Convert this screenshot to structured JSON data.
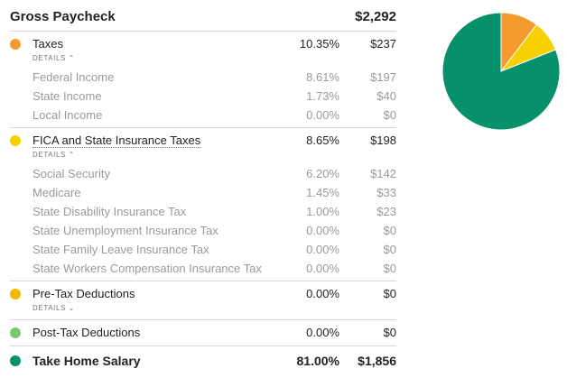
{
  "header": {
    "title": "Gross Paycheck",
    "amount": "$2,292"
  },
  "sections": {
    "taxes": {
      "label": "Taxes",
      "percent": "10.35%",
      "amount": "$237",
      "color": "#f59a2e",
      "details_label": "DETAILS ⌃",
      "items": [
        {
          "label": "Federal Income",
          "percent": "8.61%",
          "amount": "$197"
        },
        {
          "label": "State Income",
          "percent": "1.73%",
          "amount": "$40"
        },
        {
          "label": "Local Income",
          "percent": "0.00%",
          "amount": "$0"
        }
      ]
    },
    "fica": {
      "label": "FICA and State Insurance Taxes",
      "percent": "8.65%",
      "amount": "$198",
      "color": "#f7d000",
      "details_label": "DETAILS ⌃",
      "items": [
        {
          "label": "Social Security",
          "percent": "6.20%",
          "amount": "$142"
        },
        {
          "label": "Medicare",
          "percent": "1.45%",
          "amount": "$33"
        },
        {
          "label": "State Disability Insurance Tax",
          "percent": "1.00%",
          "amount": "$23"
        },
        {
          "label": "State Unemployment Insurance Tax",
          "percent": "0.00%",
          "amount": "$0"
        },
        {
          "label": "State Family Leave Insurance Tax",
          "percent": "0.00%",
          "amount": "$0"
        },
        {
          "label": "State Workers Compensation Insurance Tax",
          "percent": "0.00%",
          "amount": "$0"
        }
      ]
    },
    "pretax": {
      "label": "Pre-Tax Deductions",
      "percent": "0.00%",
      "amount": "$0",
      "color": "#f5b800",
      "details_label": "DETAILS ⌄"
    },
    "posttax": {
      "label": "Post-Tax Deductions",
      "percent": "0.00%",
      "amount": "$0",
      "color": "#7bc96f"
    },
    "takehome": {
      "label": "Take Home Salary",
      "percent": "81.00%",
      "amount": "$1,856",
      "color": "#06916b"
    }
  },
  "chart_data": {
    "type": "pie",
    "slices": [
      {
        "name": "Take Home Salary",
        "value": 81.0,
        "color": "#06916b"
      },
      {
        "name": "Taxes",
        "value": 10.35,
        "color": "#f59a2e"
      },
      {
        "name": "FICA and State Insurance Taxes",
        "value": 8.65,
        "color": "#f7d000"
      }
    ]
  }
}
